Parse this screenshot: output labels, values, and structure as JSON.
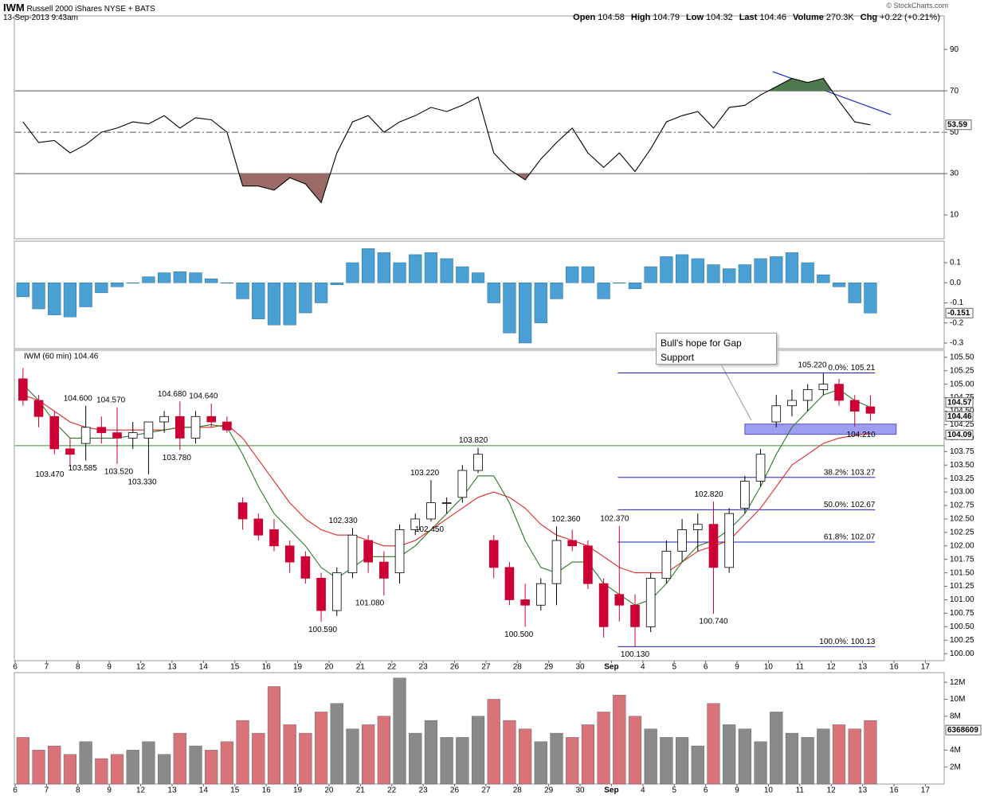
{
  "header": {
    "symbol": "IWM",
    "name": "Russell 2000 iShares",
    "exchange": "NYSE + BATS",
    "timestamp": "13-Sep-2013 9:43am",
    "credit": "© StockCharts.com",
    "stats": [
      {
        "label": "Open",
        "value": "104.58"
      },
      {
        "label": "High",
        "value": "104.79"
      },
      {
        "label": "Low",
        "value": "104.32"
      },
      {
        "label": "Last",
        "value": "104.46"
      },
      {
        "label": "Volume",
        "value": "270.3K"
      },
      {
        "label": "Chg",
        "value": "+0.22 (+0.21%)"
      }
    ]
  },
  "chart_data": {
    "type": "candlestick",
    "legend": "IWM (60 min) 104.46",
    "up_color": "#ffffff",
    "down_color": "#cc0033",
    "xlim": [
      0,
      29.6
    ],
    "xticks": [
      {
        "value": 0,
        "label": "6"
      },
      {
        "value": 1,
        "label": "7"
      },
      {
        "value": 2,
        "label": "8"
      },
      {
        "value": 3,
        "label": "9"
      },
      {
        "value": 4,
        "label": "12"
      },
      {
        "value": 5,
        "label": "13"
      },
      {
        "value": 6,
        "label": "14"
      },
      {
        "value": 7,
        "label": "15"
      },
      {
        "value": 8,
        "label": "16"
      },
      {
        "value": 9,
        "label": "19"
      },
      {
        "value": 10,
        "label": "20"
      },
      {
        "value": 11,
        "label": "21"
      },
      {
        "value": 12,
        "label": "22"
      },
      {
        "value": 13,
        "label": "23"
      },
      {
        "value": 14,
        "label": "26"
      },
      {
        "value": 15,
        "label": "27"
      },
      {
        "value": 16,
        "label": "28"
      },
      {
        "value": 17,
        "label": "29"
      },
      {
        "value": 18,
        "label": "30"
      },
      {
        "value": 19,
        "label": "Sep"
      },
      {
        "value": 20,
        "label": "4"
      },
      {
        "value": 21,
        "label": "5"
      },
      {
        "value": 22,
        "label": "6"
      },
      {
        "value": 23,
        "label": "9"
      },
      {
        "value": 24,
        "label": "10"
      },
      {
        "value": 25,
        "label": "11"
      },
      {
        "value": 26,
        "label": "12"
      },
      {
        "value": 27,
        "label": "13"
      },
      {
        "value": 28,
        "label": "16"
      },
      {
        "value": 29,
        "label": "17"
      }
    ],
    "x": [
      0.25,
      0.75,
      1.25,
      1.75,
      2.25,
      2.75,
      3.25,
      3.75,
      4.25,
      4.75,
      5.25,
      5.75,
      6.25,
      6.75,
      7.25,
      7.75,
      8.25,
      8.75,
      9.25,
      9.75,
      10.25,
      10.75,
      11.25,
      11.75,
      12.25,
      12.75,
      13.25,
      13.75,
      14.25,
      14.75,
      15.25,
      15.75,
      16.25,
      16.75,
      17.25,
      17.75,
      18.25,
      18.75,
      19.25,
      19.75,
      20.25,
      20.75,
      21.25,
      21.75,
      22.25,
      22.75,
      23.25,
      23.75,
      24.25,
      24.75,
      25.25,
      25.75,
      26.25,
      26.75,
      27.25
    ],
    "open": [
      105.1,
      104.7,
      104.4,
      103.8,
      103.9,
      104.2,
      104.1,
      104.0,
      104.0,
      104.3,
      104.4,
      104.0,
      104.4,
      104.3,
      102.8,
      102.5,
      102.3,
      102.0,
      101.8,
      101.4,
      100.8,
      101.5,
      102.1,
      101.7,
      101.5,
      102.3,
      102.5,
      102.8,
      102.9,
      103.4,
      102.1,
      101.6,
      101.0,
      100.9,
      101.3,
      102.1,
      102.0,
      101.3,
      101.1,
      100.9,
      100.5,
      101.4,
      101.9,
      102.3,
      102.4,
      101.6,
      102.7,
      103.2,
      104.3,
      104.6,
      104.7,
      104.9,
      105.0,
      104.7,
      104.58
    ],
    "high": [
      105.3,
      104.8,
      104.5,
      104.0,
      104.6,
      104.4,
      104.57,
      104.3,
      104.3,
      104.5,
      104.68,
      104.5,
      104.64,
      104.4,
      102.9,
      102.6,
      102.5,
      102.1,
      101.9,
      101.5,
      101.6,
      102.33,
      102.2,
      101.9,
      102.4,
      102.6,
      103.22,
      102.9,
      103.5,
      103.82,
      102.2,
      101.7,
      101.3,
      101.4,
      102.36,
      102.3,
      102.1,
      101.4,
      102.37,
      101.1,
      101.5,
      102.1,
      102.5,
      102.6,
      102.82,
      102.7,
      103.3,
      103.8,
      104.8,
      104.9,
      105.0,
      105.22,
      105.1,
      104.8,
      104.79
    ],
    "low": [
      104.6,
      104.2,
      103.7,
      103.47,
      103.585,
      103.9,
      103.52,
      103.8,
      103.33,
      104.1,
      103.78,
      103.9,
      104.2,
      104.1,
      102.3,
      102.1,
      101.9,
      101.5,
      101.3,
      100.59,
      100.7,
      101.4,
      101.5,
      101.08,
      101.3,
      102.2,
      102.45,
      102.6,
      102.8,
      103.35,
      101.4,
      100.9,
      100.5,
      100.8,
      100.9,
      101.9,
      101.2,
      100.3,
      100.6,
      100.13,
      100.4,
      101.3,
      101.7,
      101.9,
      100.74,
      101.5,
      102.6,
      103.1,
      104.2,
      104.4,
      104.5,
      104.8,
      104.6,
      104.21,
      104.32
    ],
    "close": [
      104.7,
      104.4,
      103.8,
      103.7,
      104.2,
      104.1,
      104.0,
      104.1,
      104.3,
      104.4,
      104.0,
      104.4,
      104.3,
      104.15,
      102.5,
      102.2,
      102.0,
      101.7,
      101.4,
      100.8,
      101.5,
      102.2,
      101.7,
      101.4,
      102.3,
      102.5,
      102.8,
      102.8,
      103.4,
      103.7,
      101.6,
      101.0,
      100.9,
      101.3,
      102.1,
      102.0,
      101.3,
      100.5,
      100.9,
      100.5,
      101.4,
      101.9,
      102.3,
      102.4,
      101.6,
      102.6,
      103.2,
      103.7,
      104.6,
      104.7,
      104.9,
      105.0,
      104.7,
      104.5,
      104.46
    ],
    "ma_fast": {
      "color": "#2a7a2a",
      "values": [
        105.0,
        104.7,
        104.3,
        104.0,
        104.0,
        104.0,
        104.0,
        104.05,
        104.1,
        104.15,
        104.2,
        104.2,
        104.25,
        104.2,
        103.7,
        103.1,
        102.6,
        102.3,
        102.0,
        101.6,
        101.4,
        101.6,
        101.8,
        101.8,
        101.8,
        102.0,
        102.3,
        102.6,
        102.9,
        103.3,
        103.3,
        102.8,
        102.1,
        101.6,
        101.5,
        101.7,
        101.7,
        101.3,
        101.1,
        100.9,
        101.0,
        101.3,
        101.7,
        102.0,
        102.1,
        102.3,
        102.6,
        103.1,
        103.7,
        104.2,
        104.5,
        104.8,
        104.9,
        104.7,
        104.57
      ]
    },
    "ma_slow": {
      "color": "#e02a2a",
      "values": [
        104.8,
        104.7,
        104.5,
        104.3,
        104.2,
        104.15,
        104.15,
        104.15,
        104.15,
        104.15,
        104.2,
        104.2,
        104.2,
        104.25,
        104.0,
        103.6,
        103.2,
        102.8,
        102.5,
        102.3,
        102.2,
        102.2,
        102.1,
        102.0,
        102.0,
        102.1,
        102.3,
        102.5,
        102.7,
        102.9,
        103.0,
        102.9,
        102.7,
        102.4,
        102.2,
        102.1,
        102.0,
        101.8,
        101.6,
        101.5,
        101.5,
        101.5,
        101.7,
        101.9,
        102.0,
        102.1,
        102.4,
        102.7,
        103.1,
        103.5,
        103.7,
        103.9,
        104.0,
        104.05,
        104.09
      ]
    },
    "ylim": [
      99.87,
      105.63
    ],
    "yticks": [
      {
        "value": 100,
        "label": "100.00"
      },
      {
        "value": 100.25,
        "label": "100.25"
      },
      {
        "value": 100.5,
        "label": "100.50"
      },
      {
        "value": 100.75,
        "label": "100.75"
      },
      {
        "value": 101,
        "label": "101.00"
      },
      {
        "value": 101.25,
        "label": "101.25"
      },
      {
        "value": 101.5,
        "label": "101.50"
      },
      {
        "value": 101.75,
        "label": "101.75"
      },
      {
        "value": 102,
        "label": "102.00"
      },
      {
        "value": 102.25,
        "label": "102.25"
      },
      {
        "value": 102.5,
        "label": "102.50"
      },
      {
        "value": 102.75,
        "label": "102.75"
      },
      {
        "value": 103,
        "label": "103.00"
      },
      {
        "value": 103.25,
        "label": "103.25"
      },
      {
        "value": 103.5,
        "label": "103.50"
      },
      {
        "value": 103.75,
        "label": "103.75"
      },
      {
        "value": 104,
        "label": "104.00"
      },
      {
        "value": 104.25,
        "label": "104.25"
      },
      {
        "value": 104.5,
        "label": "104.50"
      },
      {
        "value": 104.75,
        "label": "104.75"
      },
      {
        "value": 105,
        "label": "105.00"
      },
      {
        "value": 105.25,
        "label": "105.25"
      },
      {
        "value": 105.5,
        "label": "105.50"
      }
    ],
    "support_line": {
      "value": 103.86,
      "color": "#3a8a3a"
    },
    "fib": {
      "color": "#1f1fbf",
      "x_range": [
        19.2,
        27.4
      ],
      "levels": [
        {
          "value": 105.21,
          "label": "0.0%: 105.21"
        },
        {
          "value": 103.27,
          "label": "38.2%: 103.27"
        },
        {
          "value": 102.67,
          "label": "50.0%: 102.67"
        },
        {
          "value": 102.07,
          "label": "61.8%: 102.07"
        },
        {
          "value": 100.13,
          "label": "100.0%: 100.13"
        }
      ]
    },
    "gap_zone": {
      "x_range": [
        23.25,
        28.07
      ],
      "y_range": [
        104.07,
        104.26
      ],
      "color": "#8c8cf0"
    },
    "callout": "Bull's hope for Gap Support",
    "annotations": [
      {
        "label": "104.600",
        "value": 104.6,
        "x": 2.0,
        "side": "above"
      },
      {
        "label": "103.470",
        "value": 103.47,
        "x": 1.1,
        "side": "below"
      },
      {
        "label": "103.585",
        "value": 103.585,
        "x": 2.15,
        "side": "below"
      },
      {
        "label": "104.570",
        "value": 104.57,
        "x": 3.05,
        "side": "above"
      },
      {
        "label": "103.520",
        "value": 103.52,
        "x": 3.3,
        "side": "below"
      },
      {
        "label": "103.330",
        "value": 103.33,
        "x": 4.05,
        "side": "below"
      },
      {
        "label": "104.680",
        "value": 104.68,
        "x": 5.0,
        "side": "above"
      },
      {
        "label": "103.780",
        "value": 103.78,
        "x": 5.15,
        "side": "below"
      },
      {
        "label": "104.640",
        "value": 104.64,
        "x": 6.0,
        "side": "above"
      },
      {
        "label": "102.330",
        "value": 102.33,
        "x": 10.45,
        "side": "above"
      },
      {
        "label": "100.590",
        "value": 100.59,
        "x": 9.8,
        "side": "below"
      },
      {
        "label": "101.080",
        "value": 101.08,
        "x": 11.3,
        "side": "below"
      },
      {
        "label": "102.450",
        "value": 102.45,
        "x": 13.2,
        "side": "below"
      },
      {
        "label": "103.220",
        "value": 103.22,
        "x": 13.05,
        "side": "above"
      },
      {
        "label": "103.820",
        "value": 103.82,
        "x": 14.6,
        "side": "above"
      },
      {
        "label": "100.500",
        "value": 100.5,
        "x": 16.05,
        "side": "below"
      },
      {
        "label": "102.360",
        "value": 102.36,
        "x": 17.55,
        "side": "above"
      },
      {
        "label": "102.370",
        "value": 102.37,
        "x": 19.1,
        "side": "above"
      },
      {
        "label": "100.130",
        "value": 100.13,
        "x": 19.75,
        "side": "below"
      },
      {
        "label": "102.820",
        "value": 102.82,
        "x": 22.1,
        "side": "above"
      },
      {
        "label": "100.740",
        "value": 100.74,
        "x": 22.25,
        "side": "below"
      },
      {
        "label": "105.220",
        "value": 105.22,
        "x": 25.4,
        "side": "above"
      },
      {
        "label": "104.210",
        "value": 104.21,
        "x": 26.95,
        "side": "below"
      }
    ],
    "rsi": {
      "color": "#000000",
      "ylim": [
        -1.5,
        106.2
      ],
      "yticks": [
        10,
        30,
        50,
        70,
        90
      ],
      "bands": [
        30,
        70
      ],
      "midline": 50,
      "overbought_color": "#4f7a4f",
      "oversold_color": "#9c6a66",
      "values": [
        55,
        45,
        46,
        40,
        44,
        50,
        52,
        55,
        54,
        58,
        52,
        57,
        56,
        50,
        24,
        24,
        22,
        28,
        25,
        16,
        40,
        55,
        58,
        50,
        55,
        58,
        62,
        60,
        63,
        67,
        40,
        32,
        27,
        37,
        45,
        52,
        40,
        33,
        40,
        31,
        42,
        55,
        58,
        60,
        52,
        62,
        63,
        68,
        72,
        76,
        74,
        76,
        65,
        55,
        53.59
      ]
    },
    "macd": {
      "color": "#4a9fd4",
      "ylim": [
        -0.328,
        0.207
      ],
      "yticks": [
        0.1,
        {
          "value": 0,
          "label": "0.0"
        },
        -0.1,
        -0.2,
        -0.3
      ],
      "values": [
        -0.07,
        -0.13,
        -0.16,
        -0.17,
        -0.12,
        -0.05,
        -0.02,
        0.0,
        0.03,
        0.05,
        0.055,
        0.05,
        0.02,
        0.0,
        -0.08,
        -0.18,
        -0.21,
        -0.21,
        -0.15,
        -0.1,
        -0.01,
        0.1,
        0.17,
        0.15,
        0.1,
        0.14,
        0.15,
        0.12,
        0.08,
        0.05,
        -0.1,
        -0.25,
        -0.3,
        -0.2,
        -0.08,
        0.08,
        0.08,
        -0.08,
        0.0,
        -0.03,
        0.08,
        0.13,
        0.14,
        0.12,
        0.09,
        0.07,
        0.09,
        0.12,
        0.13,
        0.15,
        0.1,
        0.04,
        -0.02,
        -0.1,
        -0.151
      ]
    },
    "volume": {
      "up_color": "#8a8a8a",
      "down_color": "#d9737a",
      "ylim": [
        0,
        13140000
      ],
      "yticks": [
        {
          "value": 2000000,
          "label": "2M"
        },
        {
          "value": 4000000,
          "label": "4M"
        },
        {
          "value": 8000000,
          "label": "8M"
        },
        {
          "value": 10000000,
          "label": "10M"
        },
        {
          "value": 12000000,
          "label": "12M"
        }
      ],
      "average": 6368609,
      "values": [
        5500000,
        4000000,
        4500000,
        3500000,
        5000000,
        3000000,
        3500000,
        4000000,
        5000000,
        3500000,
        6000000,
        4500000,
        4000000,
        5000000,
        7500000,
        6000000,
        11500000,
        7000000,
        6000000,
        8500000,
        9500000,
        6500000,
        7000000,
        8000000,
        12500000,
        6000000,
        7500000,
        5500000,
        5500000,
        8000000,
        10000000,
        7500000,
        6500000,
        5000000,
        6000000,
        5500000,
        7000000,
        8500000,
        10500000,
        8000000,
        6500000,
        5500000,
        5500000,
        4500000,
        9500000,
        7000000,
        6500000,
        5000000,
        8500000,
        6000000,
        5500000,
        6500000,
        7000000,
        6500000,
        7500000
      ]
    }
  }
}
